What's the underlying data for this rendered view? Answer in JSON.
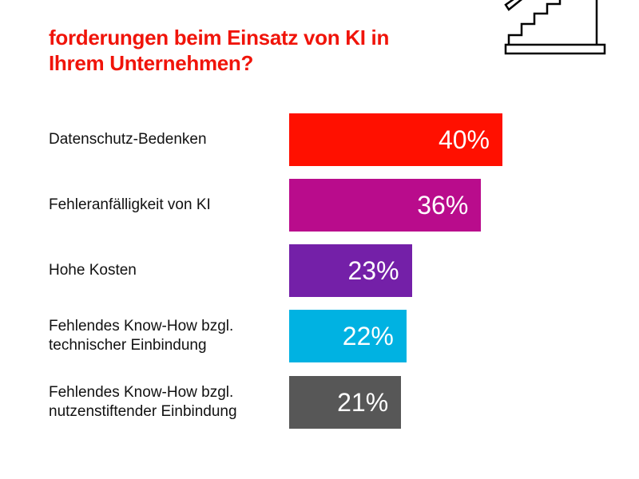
{
  "title_lines": [
    "forderungen beim Einsatz von KI in",
    "Ihrem Unternehmen?"
  ],
  "chart_data": {
    "type": "bar",
    "orientation": "horizontal",
    "categories": [
      "Datenschutz-Bedenken",
      "Fehleranfälligkeit von KI",
      "Hohe Kosten",
      "Fehlendes Know-How bzgl. technischer Einbindung",
      "Fehlendes Know-How bzgl. nutzenstiftender Einbindung"
    ],
    "category_lines": [
      [
        "Datenschutz-Bedenken"
      ],
      [
        "Fehleranfälligkeit von KI"
      ],
      [
        "Hohe Kosten"
      ],
      [
        "Fehlendes Know-How bzgl.",
        "technischer Einbindung"
      ],
      [
        "Fehlendes Know-How bzgl.",
        "nutzenstiftender Einbindung"
      ]
    ],
    "values": [
      40,
      36,
      23,
      22,
      21
    ],
    "value_labels": [
      "40%",
      "36%",
      "23%",
      "22%",
      "21%"
    ],
    "colors": [
      "#ff1000",
      "#b90c8c",
      "#7420a8",
      "#00b2e2",
      "#575757"
    ],
    "unit": "%",
    "xlim": [
      0,
      40
    ],
    "grid": false
  },
  "icons": [
    "stairs-icon"
  ]
}
